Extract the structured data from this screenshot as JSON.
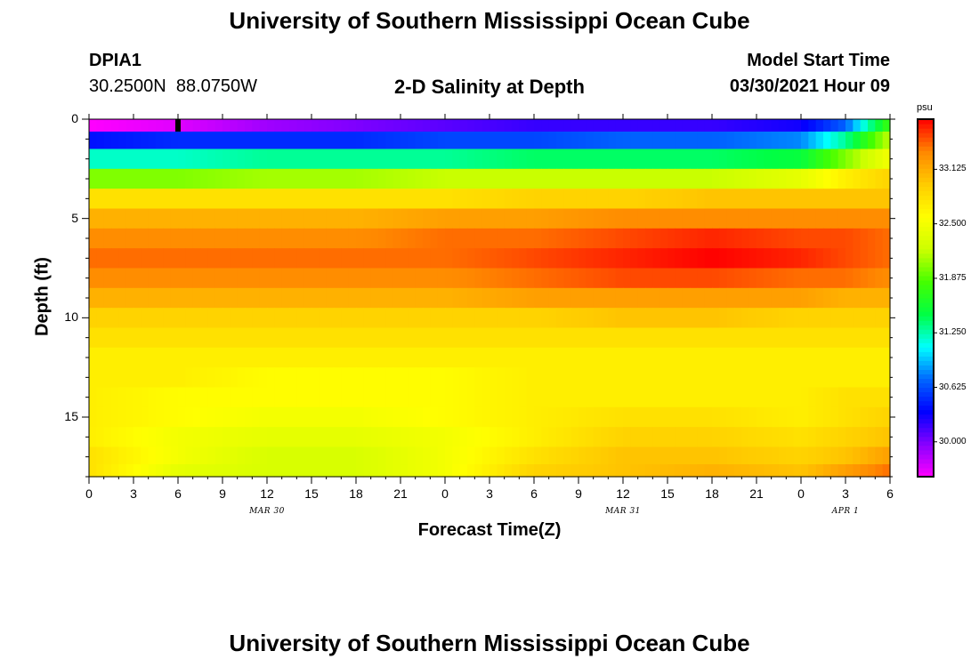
{
  "header": {
    "title_top": "University of Southern Mississippi Ocean Cube",
    "title_bottom": "University of Southern Mississippi Ocean Cube",
    "station_id": "DPIA1",
    "station_coords": "30.2500N  88.0750W",
    "plot_title": "2-D Salinity at Depth",
    "model_start_label": "Model Start Time",
    "model_start_value": "03/30/2021 Hour 09"
  },
  "chart_data": {
    "type": "heatmap",
    "title": "2-D Salinity at Depth",
    "xlabel": "Forecast Time(Z)",
    "ylabel": "Depth (ft)",
    "x_tick_labels": [
      "0",
      "3",
      "6",
      "9",
      "12",
      "15",
      "18",
      "21",
      "0",
      "3",
      "6",
      "9",
      "12",
      "15",
      "18",
      "21",
      "0",
      "3",
      "6"
    ],
    "x_range_hours": [
      0,
      54
    ],
    "day_labels": [
      {
        "label": "MAR 30",
        "hour": 12
      },
      {
        "label": "MAR 31",
        "hour": 36
      },
      {
        "label": "APR 1",
        "hour": 51
      }
    ],
    "y_tick_labels": [
      "0",
      "5",
      "10",
      "15"
    ],
    "y_tick_values": [
      0,
      5,
      10,
      15
    ],
    "y_range_ft": [
      0,
      18
    ],
    "depth_levels_ft": [
      0.25,
      1.0,
      2.0,
      3.0,
      4.0,
      5.0,
      6.0,
      7.0,
      8.0,
      9.0,
      10.0,
      11.0,
      12.0,
      13.0,
      14.0,
      15.0,
      16.0,
      17.0,
      17.75
    ],
    "time_hours": [
      0,
      6,
      12,
      18,
      24,
      30,
      36,
      42,
      48,
      51,
      54
    ],
    "salinity_psu": [
      [
        29.6,
        29.7,
        29.9,
        30.0,
        30.1,
        30.2,
        30.2,
        30.2,
        30.3,
        30.7,
        31.8
      ],
      [
        30.4,
        30.5,
        30.5,
        30.5,
        30.6,
        30.6,
        30.7,
        30.7,
        30.8,
        31.3,
        32.2
      ],
      [
        31.2,
        31.2,
        31.3,
        31.3,
        31.3,
        31.4,
        31.4,
        31.4,
        31.5,
        32.0,
        32.5
      ],
      [
        32.0,
        32.0,
        32.1,
        32.1,
        32.2,
        32.2,
        32.2,
        32.2,
        32.4,
        32.7,
        32.9
      ],
      [
        32.8,
        32.8,
        32.8,
        32.8,
        32.8,
        32.9,
        32.9,
        33.0,
        33.0,
        33.0,
        33.0
      ],
      [
        33.1,
        33.1,
        33.1,
        33.1,
        33.2,
        33.2,
        33.3,
        33.3,
        33.3,
        33.3,
        33.3
      ],
      [
        33.3,
        33.3,
        33.3,
        33.3,
        33.4,
        33.4,
        33.5,
        33.6,
        33.5,
        33.5,
        33.4
      ],
      [
        33.4,
        33.4,
        33.4,
        33.4,
        33.4,
        33.5,
        33.6,
        33.7,
        33.6,
        33.5,
        33.4
      ],
      [
        33.3,
        33.3,
        33.3,
        33.3,
        33.3,
        33.4,
        33.5,
        33.5,
        33.4,
        33.4,
        33.3
      ],
      [
        33.1,
        33.1,
        33.1,
        33.1,
        33.1,
        33.2,
        33.2,
        33.2,
        33.2,
        33.1,
        33.1
      ],
      [
        32.9,
        32.9,
        32.9,
        32.9,
        32.9,
        32.9,
        33.0,
        33.0,
        32.9,
        32.9,
        32.9
      ],
      [
        32.8,
        32.8,
        32.8,
        32.8,
        32.8,
        32.8,
        32.8,
        32.8,
        32.8,
        32.8,
        32.8
      ],
      [
        32.7,
        32.7,
        32.7,
        32.7,
        32.7,
        32.7,
        32.7,
        32.7,
        32.7,
        32.7,
        32.7
      ],
      [
        32.7,
        32.7,
        32.6,
        32.6,
        32.6,
        32.7,
        32.7,
        32.7,
        32.7,
        32.7,
        32.7
      ],
      [
        32.7,
        32.6,
        32.6,
        32.6,
        32.6,
        32.7,
        32.7,
        32.7,
        32.7,
        32.8,
        32.8
      ],
      [
        32.7,
        32.6,
        32.5,
        32.5,
        32.6,
        32.7,
        32.8,
        32.8,
        32.7,
        32.8,
        32.9
      ],
      [
        32.7,
        32.5,
        32.4,
        32.4,
        32.5,
        32.7,
        32.9,
        32.9,
        32.8,
        32.9,
        33.0
      ],
      [
        32.8,
        32.5,
        32.3,
        32.3,
        32.5,
        32.8,
        33.0,
        33.0,
        32.9,
        33.0,
        33.2
      ],
      [
        32.8,
        32.4,
        32.3,
        32.3,
        32.5,
        32.9,
        33.0,
        33.1,
        33.0,
        33.2,
        33.4
      ]
    ],
    "missing_cell": {
      "hour": 6,
      "depth_level_index": 0
    },
    "colorbar": {
      "unit": "psu",
      "range": [
        29.6,
        33.7
      ],
      "tick_labels": [
        "30.000",
        "30.625",
        "31.250",
        "31.875",
        "32.500",
        "33.125"
      ],
      "tick_values": [
        30.0,
        30.625,
        31.25,
        31.875,
        32.5,
        33.125
      ],
      "colors": [
        "#ff00ff",
        "#8800ff",
        "#0000ff",
        "#0066ff",
        "#00ffff",
        "#00ff44",
        "#44ff00",
        "#ccff00",
        "#ffff00",
        "#ffcc00",
        "#ff8800",
        "#ff0000"
      ]
    }
  }
}
